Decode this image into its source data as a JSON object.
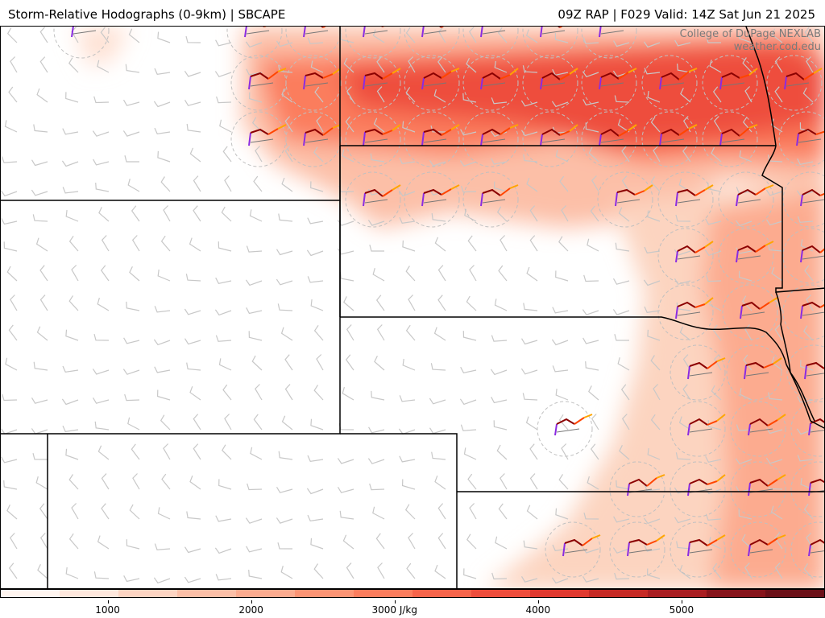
{
  "header": {
    "left_title": "Storm-Relative Hodographs (0-9km) | SBCAPE",
    "right_title": "09Z RAP | F029 Valid: 14Z Sat Jun 21 2025"
  },
  "credit": {
    "line1": "College of DuPage NEXLAB",
    "line2": "weather.cod.edu"
  },
  "colorbar": {
    "unit": "J/kg",
    "ticks": [
      {
        "value": 1000,
        "label": "1000"
      },
      {
        "value": 2000,
        "label": "2000"
      },
      {
        "value": 3000,
        "label": "3000 J/kg"
      },
      {
        "value": 4000,
        "label": "4000"
      },
      {
        "value": 5000,
        "label": "5000"
      }
    ],
    "range": [
      250,
      6000
    ],
    "colors": [
      "#fff5f0",
      "#fee7dc",
      "#fdd4c2",
      "#fcbfa7",
      "#fcab8f",
      "#fc9474",
      "#fb7d5d",
      "#f6644a",
      "#ee4d3c",
      "#e0392f",
      "#c62a25",
      "#a91e22",
      "#86141b",
      "#6b1018"
    ]
  },
  "hodograph_colors": {
    "0-1km": "#8a2be2",
    "1-3km": "#8b0000",
    "3-6km": "#ff4500",
    "6-9km": "#ffa500"
  }
}
